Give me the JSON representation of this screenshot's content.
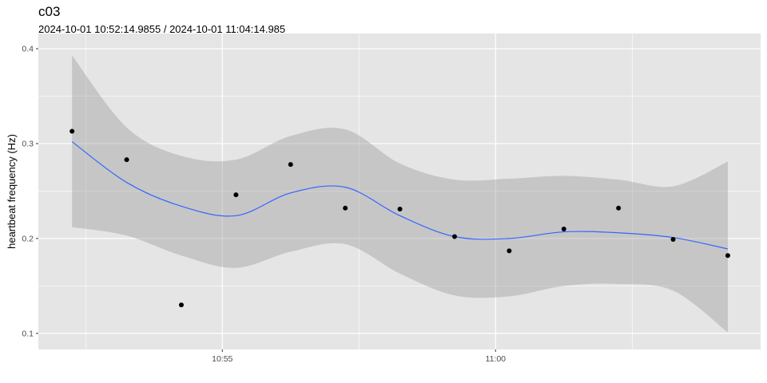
{
  "chart_data": {
    "type": "scatter",
    "title": "c03",
    "subtitle": "2024-10-01 10:52:14.9855  /  2024-10-01 11:04:14.985",
    "xlabel": "",
    "ylabel": "heartbeat frequency (Hz)",
    "xlim": [
      "10:51:38",
      "11:04:51"
    ],
    "ylim": [
      0.083,
      0.416
    ],
    "x_ticks": [
      "10:55",
      "11:00"
    ],
    "y_ticks": [
      0.1,
      0.2,
      0.3,
      0.4
    ],
    "grid": true,
    "colors": {
      "panel": "#e5e5e5",
      "grid": "#ffffff",
      "points": "#000000",
      "smooth": "#3366ff",
      "ribbon": "#999999"
    },
    "points": {
      "x": [
        "10:52:14.985",
        "10:53:14.985",
        "10:54:14.985",
        "10:55:14.985",
        "10:56:14.985",
        "10:57:14.985",
        "10:58:14.985",
        "10:59:14.985",
        "11:00:14.985",
        "11:01:14.985",
        "11:02:14.985",
        "11:03:14.985",
        "11:04:14.985"
      ],
      "y": [
        0.313,
        0.283,
        0.13,
        0.246,
        0.278,
        0.232,
        0.231,
        0.202,
        0.187,
        0.21,
        0.232,
        0.199,
        0.182
      ]
    },
    "smooth": {
      "method": "loess",
      "fit": [
        0.302,
        0.259,
        0.234,
        0.224,
        0.248,
        0.254,
        0.224,
        0.202,
        0.2,
        0.207,
        0.206,
        0.201,
        0.189
      ],
      "upper": [
        0.393,
        0.317,
        0.287,
        0.283,
        0.308,
        0.315,
        0.279,
        0.262,
        0.263,
        0.266,
        0.262,
        0.255,
        0.281
      ],
      "lower": [
        0.212,
        0.203,
        0.182,
        0.169,
        0.186,
        0.194,
        0.163,
        0.14,
        0.139,
        0.15,
        0.152,
        0.145,
        0.101
      ]
    }
  }
}
